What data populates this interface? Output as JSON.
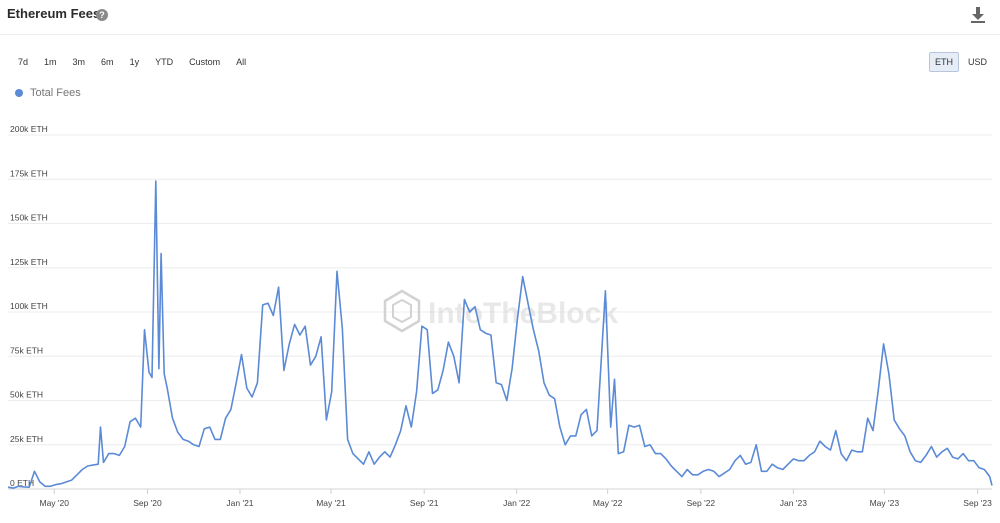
{
  "header": {
    "title": "Ethereum Fees",
    "help_icon": "question-circle-icon",
    "download_icon": "download-icon"
  },
  "range_buttons": [
    "7d",
    "1m",
    "3m",
    "6m",
    "1y",
    "YTD",
    "Custom",
    "All"
  ],
  "unit_buttons": [
    {
      "label": "ETH",
      "active": true
    },
    {
      "label": "USD",
      "active": false
    }
  ],
  "watermark": "IntoTheBlock",
  "chart_data": {
    "type": "line",
    "ylim": [
      0,
      200000
    ],
    "y_ticks": [
      0,
      25000,
      50000,
      75000,
      100000,
      125000,
      150000,
      175000,
      200000
    ],
    "y_tick_labels": [
      "0 ETH",
      "25k ETH",
      "50k ETH",
      "75k ETH",
      "100k ETH",
      "125k ETH",
      "150k ETH",
      "175k ETH",
      "200k ETH"
    ],
    "x_ticks": [
      "2020-05-01",
      "2020-09-01",
      "2021-01-01",
      "2021-05-01",
      "2021-09-01",
      "2022-01-01",
      "2022-05-01",
      "2022-09-01",
      "2023-01-01",
      "2023-05-01",
      "2023-09-01"
    ],
    "x_tick_labels": [
      "May '20",
      "Sep '20",
      "Jan '21",
      "May '21",
      "Sep '21",
      "Jan '22",
      "May '22",
      "Sep '22",
      "Jan '23",
      "May '23",
      "Sep '23"
    ],
    "xlim": [
      "2020-03-01",
      "2023-09-20"
    ],
    "series": [
      {
        "name": "Total Fees",
        "color": "#5b8ad6",
        "points": [
          [
            "2020-03-01",
            1000
          ],
          [
            "2020-03-08",
            500
          ],
          [
            "2020-03-15",
            1500
          ],
          [
            "2020-03-22",
            1200
          ],
          [
            "2020-03-29",
            1000
          ],
          [
            "2020-04-05",
            10000
          ],
          [
            "2020-04-12",
            4000
          ],
          [
            "2020-04-19",
            1500
          ],
          [
            "2020-04-26",
            1500
          ],
          [
            "2020-05-03",
            2500
          ],
          [
            "2020-05-10",
            3000
          ],
          [
            "2020-05-17",
            4000
          ],
          [
            "2020-05-24",
            5000
          ],
          [
            "2020-05-31",
            8000
          ],
          [
            "2020-06-07",
            11000
          ],
          [
            "2020-06-14",
            13000
          ],
          [
            "2020-06-21",
            13500
          ],
          [
            "2020-06-28",
            14000
          ],
          [
            "2020-07-01",
            35000
          ],
          [
            "2020-07-05",
            15000
          ],
          [
            "2020-07-12",
            20000
          ],
          [
            "2020-07-19",
            20000
          ],
          [
            "2020-07-26",
            19000
          ],
          [
            "2020-08-02",
            24000
          ],
          [
            "2020-08-09",
            38000
          ],
          [
            "2020-08-16",
            40000
          ],
          [
            "2020-08-23",
            35000
          ],
          [
            "2020-08-28",
            90000
          ],
          [
            "2020-09-03",
            66000
          ],
          [
            "2020-09-07",
            63000
          ],
          [
            "2020-09-12",
            174000
          ],
          [
            "2020-09-16",
            68000
          ],
          [
            "2020-09-19",
            133000
          ],
          [
            "2020-09-23",
            65000
          ],
          [
            "2020-09-27",
            57000
          ],
          [
            "2020-10-04",
            40000
          ],
          [
            "2020-10-11",
            32000
          ],
          [
            "2020-10-18",
            28000
          ],
          [
            "2020-10-25",
            27000
          ],
          [
            "2020-11-01",
            25000
          ],
          [
            "2020-11-08",
            24000
          ],
          [
            "2020-11-15",
            34000
          ],
          [
            "2020-11-22",
            35000
          ],
          [
            "2020-11-29",
            28000
          ],
          [
            "2020-12-06",
            28000
          ],
          [
            "2020-12-13",
            40000
          ],
          [
            "2020-12-20",
            45000
          ],
          [
            "2020-12-27",
            60000
          ],
          [
            "2021-01-03",
            76000
          ],
          [
            "2021-01-10",
            57000
          ],
          [
            "2021-01-17",
            52000
          ],
          [
            "2021-01-24",
            60000
          ],
          [
            "2021-01-31",
            104000
          ],
          [
            "2021-02-07",
            105000
          ],
          [
            "2021-02-14",
            98000
          ],
          [
            "2021-02-21",
            114000
          ],
          [
            "2021-02-28",
            67000
          ],
          [
            "2021-03-07",
            82000
          ],
          [
            "2021-03-14",
            93000
          ],
          [
            "2021-03-21",
            87000
          ],
          [
            "2021-03-28",
            92000
          ],
          [
            "2021-04-04",
            70000
          ],
          [
            "2021-04-11",
            75000
          ],
          [
            "2021-04-18",
            86000
          ],
          [
            "2021-04-25",
            39000
          ],
          [
            "2021-05-02",
            55000
          ],
          [
            "2021-05-09",
            123000
          ],
          [
            "2021-05-16",
            91000
          ],
          [
            "2021-05-23",
            28000
          ],
          [
            "2021-05-30",
            20000
          ],
          [
            "2021-06-06",
            17000
          ],
          [
            "2021-06-13",
            14000
          ],
          [
            "2021-06-20",
            21000
          ],
          [
            "2021-06-27",
            14000
          ],
          [
            "2021-07-04",
            18000
          ],
          [
            "2021-07-11",
            21000
          ],
          [
            "2021-07-18",
            18000
          ],
          [
            "2021-07-25",
            25000
          ],
          [
            "2021-08-01",
            33000
          ],
          [
            "2021-08-08",
            47000
          ],
          [
            "2021-08-15",
            35000
          ],
          [
            "2021-08-22",
            55000
          ],
          [
            "2021-08-29",
            92000
          ],
          [
            "2021-09-05",
            90000
          ],
          [
            "2021-09-12",
            54000
          ],
          [
            "2021-09-19",
            56000
          ],
          [
            "2021-09-26",
            67000
          ],
          [
            "2021-10-03",
            83000
          ],
          [
            "2021-10-10",
            75000
          ],
          [
            "2021-10-17",
            60000
          ],
          [
            "2021-10-24",
            107000
          ],
          [
            "2021-10-31",
            100000
          ],
          [
            "2021-11-07",
            103000
          ],
          [
            "2021-11-14",
            90000
          ],
          [
            "2021-11-21",
            88000
          ],
          [
            "2021-11-28",
            87000
          ],
          [
            "2021-12-05",
            60000
          ],
          [
            "2021-12-12",
            59000
          ],
          [
            "2021-12-19",
            50000
          ],
          [
            "2021-12-26",
            68000
          ],
          [
            "2022-01-02",
            96000
          ],
          [
            "2022-01-09",
            120000
          ],
          [
            "2022-01-16",
            105000
          ],
          [
            "2022-01-23",
            90000
          ],
          [
            "2022-01-30",
            78000
          ],
          [
            "2022-02-06",
            60000
          ],
          [
            "2022-02-13",
            53000
          ],
          [
            "2022-02-20",
            51000
          ],
          [
            "2022-02-27",
            35000
          ],
          [
            "2022-03-06",
            25000
          ],
          [
            "2022-03-13",
            30000
          ],
          [
            "2022-03-20",
            30000
          ],
          [
            "2022-03-27",
            42000
          ],
          [
            "2022-04-03",
            45000
          ],
          [
            "2022-04-10",
            30000
          ],
          [
            "2022-04-17",
            33000
          ],
          [
            "2022-04-28",
            112000
          ],
          [
            "2022-05-05",
            35000
          ],
          [
            "2022-05-10",
            62000
          ],
          [
            "2022-05-15",
            20000
          ],
          [
            "2022-05-22",
            21000
          ],
          [
            "2022-05-29",
            36000
          ],
          [
            "2022-06-05",
            35000
          ],
          [
            "2022-06-12",
            36000
          ],
          [
            "2022-06-19",
            24000
          ],
          [
            "2022-06-26",
            25000
          ],
          [
            "2022-07-03",
            20000
          ],
          [
            "2022-07-10",
            20000
          ],
          [
            "2022-07-17",
            17000
          ],
          [
            "2022-07-24",
            13000
          ],
          [
            "2022-07-31",
            10000
          ],
          [
            "2022-08-07",
            7000
          ],
          [
            "2022-08-14",
            11000
          ],
          [
            "2022-08-21",
            8000
          ],
          [
            "2022-08-28",
            8000
          ],
          [
            "2022-09-04",
            10000
          ],
          [
            "2022-09-11",
            11000
          ],
          [
            "2022-09-18",
            10000
          ],
          [
            "2022-09-25",
            7000
          ],
          [
            "2022-10-02",
            9000
          ],
          [
            "2022-10-09",
            11000
          ],
          [
            "2022-10-16",
            16000
          ],
          [
            "2022-10-23",
            19000
          ],
          [
            "2022-10-30",
            14000
          ],
          [
            "2022-11-06",
            15000
          ],
          [
            "2022-11-13",
            25000
          ],
          [
            "2022-11-20",
            10000
          ],
          [
            "2022-11-27",
            10000
          ],
          [
            "2022-12-04",
            14000
          ],
          [
            "2022-12-11",
            12000
          ],
          [
            "2022-12-18",
            11000
          ],
          [
            "2022-12-25",
            14000
          ],
          [
            "2023-01-01",
            17000
          ],
          [
            "2023-01-08",
            16000
          ],
          [
            "2023-01-15",
            16000
          ],
          [
            "2023-01-22",
            19000
          ],
          [
            "2023-01-29",
            21000
          ],
          [
            "2023-02-05",
            27000
          ],
          [
            "2023-02-12",
            24000
          ],
          [
            "2023-02-19",
            22000
          ],
          [
            "2023-02-26",
            33000
          ],
          [
            "2023-03-05",
            20000
          ],
          [
            "2023-03-12",
            16000
          ],
          [
            "2023-03-19",
            22000
          ],
          [
            "2023-03-26",
            21000
          ],
          [
            "2023-04-02",
            21000
          ],
          [
            "2023-04-09",
            40000
          ],
          [
            "2023-04-16",
            33000
          ],
          [
            "2023-04-23",
            56000
          ],
          [
            "2023-04-30",
            82000
          ],
          [
            "2023-05-07",
            65000
          ],
          [
            "2023-05-14",
            39000
          ],
          [
            "2023-05-21",
            34000
          ],
          [
            "2023-05-28",
            30000
          ],
          [
            "2023-06-04",
            21000
          ],
          [
            "2023-06-11",
            16000
          ],
          [
            "2023-06-18",
            15000
          ],
          [
            "2023-06-25",
            19000
          ],
          [
            "2023-07-02",
            24000
          ],
          [
            "2023-07-09",
            18000
          ],
          [
            "2023-07-16",
            21000
          ],
          [
            "2023-07-23",
            23000
          ],
          [
            "2023-07-30",
            18000
          ],
          [
            "2023-08-06",
            17000
          ],
          [
            "2023-08-13",
            20000
          ],
          [
            "2023-08-20",
            16000
          ],
          [
            "2023-08-27",
            16000
          ],
          [
            "2023-09-03",
            12000
          ],
          [
            "2023-09-10",
            11000
          ],
          [
            "2023-09-17",
            7000
          ],
          [
            "2023-09-20",
            2000
          ]
        ]
      }
    ]
  }
}
